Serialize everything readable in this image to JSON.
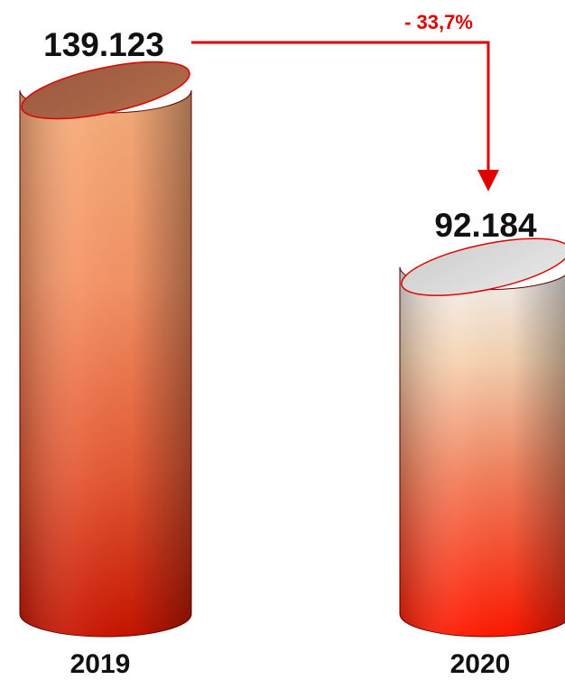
{
  "chart_data": {
    "type": "bar",
    "categories": [
      "2019",
      "2020"
    ],
    "values": [
      139123,
      92184
    ],
    "value_labels": [
      "139.123",
      "92.184"
    ],
    "change_label": "- 33,7%",
    "ylim": [
      0,
      139123
    ],
    "grid": false,
    "legend": "none"
  },
  "colors": {
    "accent": "#e00000",
    "text": "#111111",
    "bar_2019_top": "#f4a070",
    "bar_2019_bottom": "#cc1500",
    "bar_2020_top": "#f2f2f2",
    "bar_2020_bottom": "#ff1a00",
    "outline": "#8b0000"
  }
}
